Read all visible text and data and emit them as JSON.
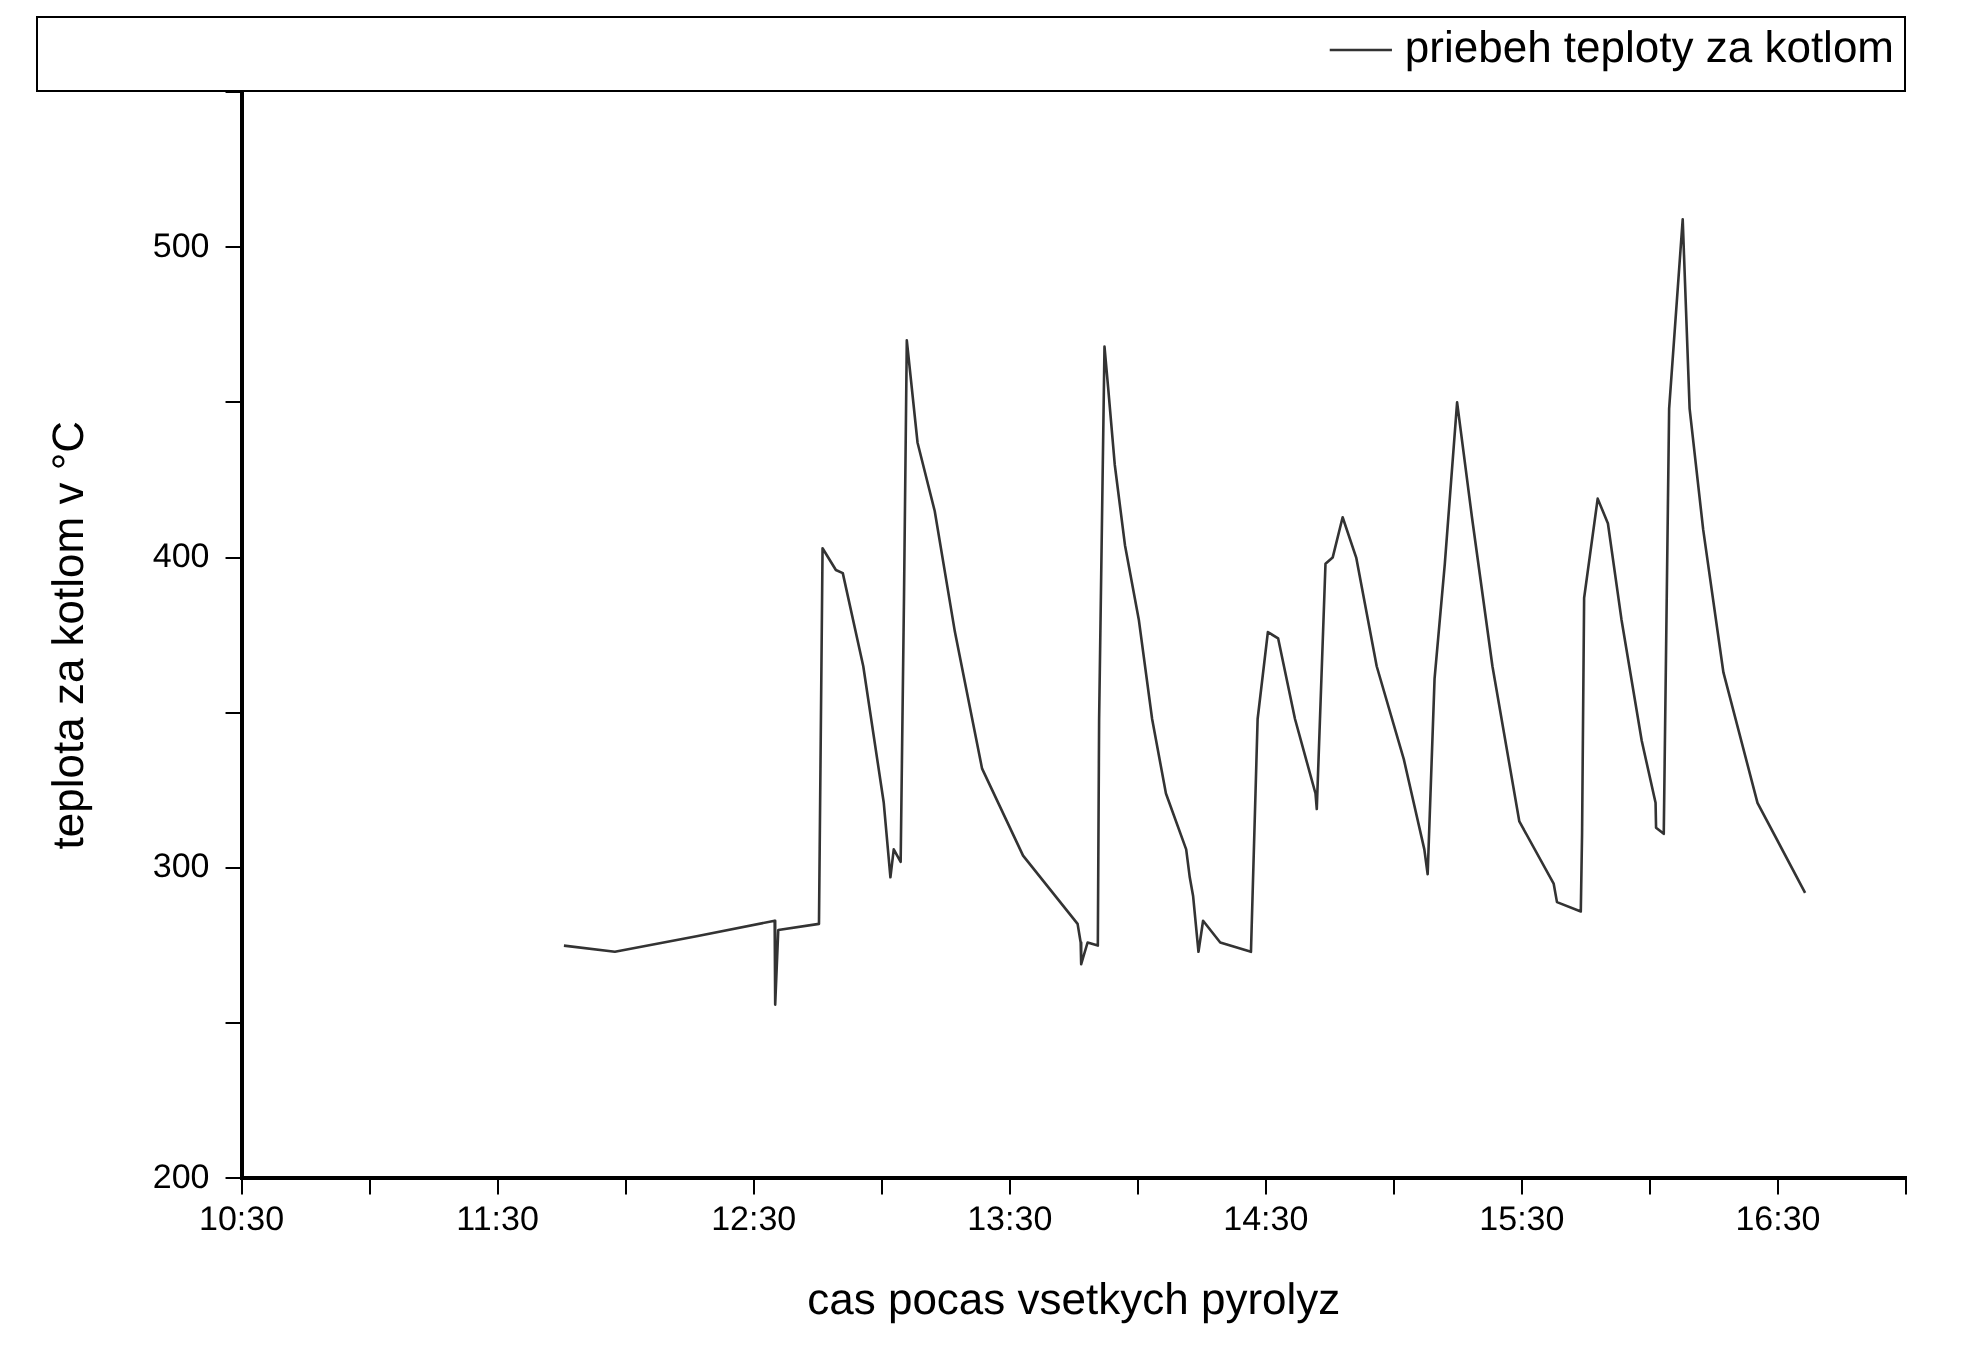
{
  "chart_data": {
    "type": "line",
    "xlabel": "cas pocas vsetkych pyrolyz",
    "ylabel": "teplota za kotlom v °C",
    "xlim": [
      10.5,
      17.0
    ],
    "xticks": [
      {
        "value": 10.5,
        "label": "10:30"
      },
      {
        "value": 11.0,
        "label": null
      },
      {
        "value": 11.5,
        "label": "11:30"
      },
      {
        "value": 12.0,
        "label": null
      },
      {
        "value": 12.5,
        "label": "12:30"
      },
      {
        "value": 13.0,
        "label": null
      },
      {
        "value": 13.5,
        "label": "13:30"
      },
      {
        "value": 14.0,
        "label": null
      },
      {
        "value": 14.5,
        "label": "14:30"
      },
      {
        "value": 15.0,
        "label": null
      },
      {
        "value": 15.5,
        "label": "15:30"
      },
      {
        "value": 16.0,
        "label": null
      },
      {
        "value": 16.5,
        "label": "16:30"
      },
      {
        "value": 17.0,
        "label": null
      }
    ],
    "ylim": [
      200,
      550
    ],
    "yticks": [
      200,
      {
        "value": 250,
        "label": null
      },
      300,
      {
        "value": 350,
        "label": null
      },
      400,
      {
        "value": 450,
        "label": null
      },
      500,
      {
        "value": 550,
        "label": null
      }
    ],
    "grid": false,
    "legend": "top right",
    "marker": "none",
    "line_style": "solid",
    "series": [
      {
        "name": "priebeh teploty za kotlom",
        "color": "#333333",
        "x": [
          11.759,
          11.958,
          12.277,
          12.582,
          12.584,
          12.596,
          12.755,
          12.769,
          12.821,
          12.848,
          12.928,
          13.008,
          13.034,
          13.047,
          13.074,
          13.087,
          13.098,
          13.14,
          13.207,
          13.286,
          13.392,
          13.552,
          13.765,
          13.777,
          13.779,
          13.804,
          13.844,
          13.849,
          13.87,
          13.884,
          13.91,
          13.95,
          14.004,
          14.056,
          14.11,
          14.189,
          14.203,
          14.216,
          14.237,
          14.255,
          14.322,
          14.442,
          14.468,
          14.508,
          14.548,
          14.614,
          14.694,
          14.699,
          14.733,
          14.761,
          14.8,
          14.853,
          14.933,
          15.039,
          15.119,
          15.132,
          15.159,
          15.199,
          15.247,
          15.305,
          15.385,
          15.49,
          15.624,
          15.637,
          15.73,
          15.735,
          15.743,
          15.796,
          15.836,
          15.889,
          15.968,
          16.022,
          16.024,
          16.054,
          16.075,
          16.128,
          16.155,
          16.208,
          16.287,
          16.42,
          16.606
        ],
        "values": [
          275,
          273,
          278,
          283,
          256,
          280,
          282,
          403,
          396,
          395,
          365,
          321,
          297,
          306,
          302,
          387,
          470,
          437,
          415,
          376,
          332,
          304,
          282,
          276,
          269,
          276,
          275,
          348,
          468,
          455,
          430,
          404,
          380,
          348,
          324,
          306,
          297,
          291,
          273,
          283,
          276,
          273,
          348,
          376,
          374,
          348,
          324,
          319,
          398,
          400,
          413,
          400,
          365,
          335,
          306,
          298,
          361,
          398,
          450,
          413,
          365,
          315,
          295,
          289,
          286,
          311,
          387,
          419,
          411,
          380,
          341,
          321,
          313,
          311,
          448,
          509,
          448,
          409,
          363,
          321,
          292
        ]
      }
    ]
  }
}
